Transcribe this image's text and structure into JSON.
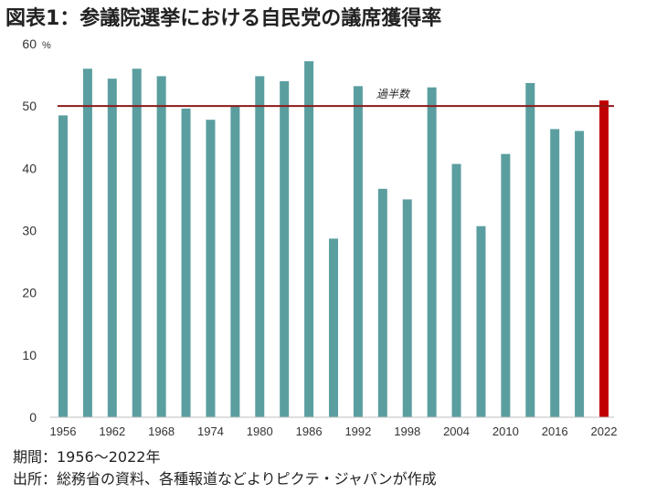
{
  "title": "図表1：参議院選挙における自民党の議席獲得率",
  "footer": {
    "period": "期間：1956～2022年",
    "source": "出所：総務省の資料、各種報道などよりピクテ・ジャパンが作成"
  },
  "colors": {
    "bar": "#5b9ea0",
    "highlight": "#c00000",
    "threshold": "#8b1a1a"
  },
  "chart_data": {
    "type": "bar",
    "title": "図表1：参議院選挙における自民党の議席獲得率",
    "xlabel": "",
    "ylabel": "%",
    "ylim": [
      0,
      60
    ],
    "yticks": [
      0,
      10,
      20,
      30,
      40,
      50,
      60
    ],
    "y_unit_label": "%",
    "x": [
      1956,
      1959,
      1962,
      1965,
      1968,
      1971,
      1974,
      1977,
      1980,
      1983,
      1986,
      1989,
      1992,
      1995,
      1998,
      2001,
      2004,
      2007,
      2010,
      2013,
      2016,
      2019,
      2022
    ],
    "xtick_labels": [
      "1956",
      "1962",
      "1968",
      "1974",
      "1980",
      "1986",
      "1992",
      "1998",
      "2004",
      "2010",
      "2016",
      "2022"
    ],
    "values": [
      48.5,
      56.0,
      54.4,
      56.0,
      54.8,
      49.6,
      47.8,
      50.0,
      54.8,
      54.0,
      57.2,
      28.7,
      53.2,
      36.7,
      35.0,
      53.0,
      40.7,
      30.7,
      42.3,
      53.7,
      46.3,
      46.0,
      50.9
    ],
    "highlight_index": 22,
    "reference_line": {
      "value": 50,
      "label": "過半数"
    },
    "grid": false,
    "legend": "none"
  }
}
